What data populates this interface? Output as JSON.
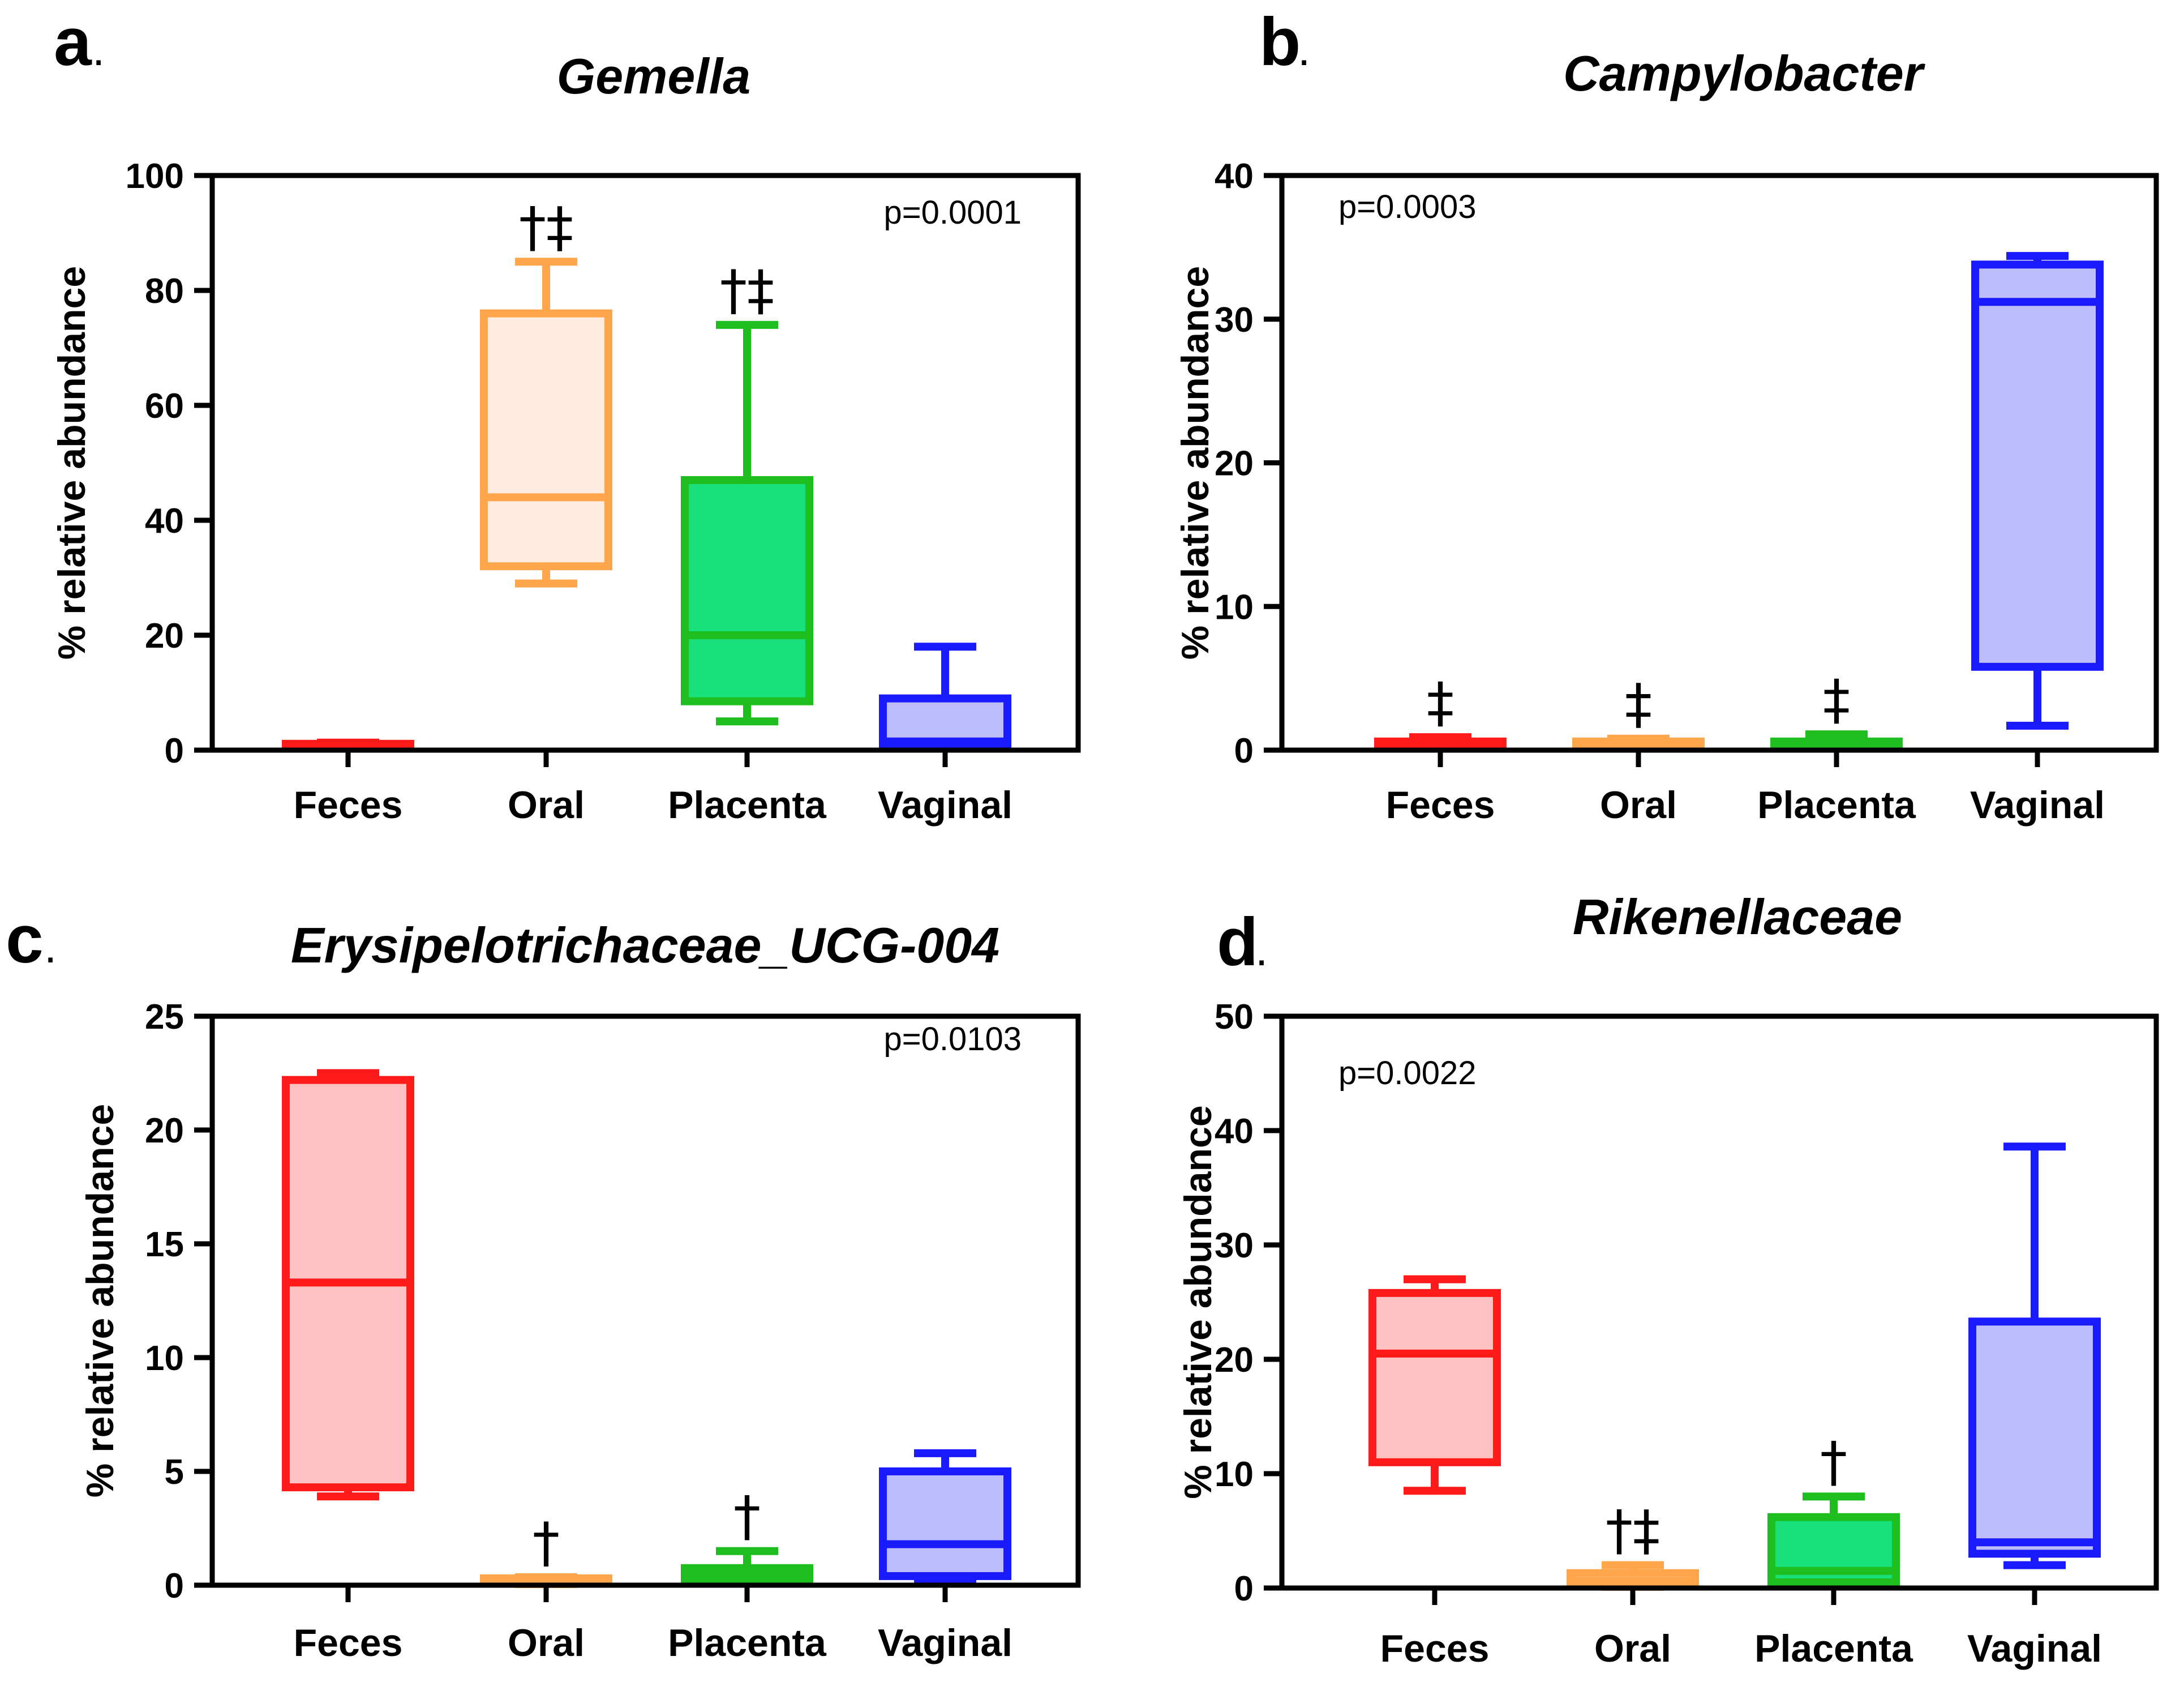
{
  "chart_data": [
    {
      "type": "box",
      "panel": "a",
      "title": "Gemella",
      "xlabel": "",
      "ylabel": "% relative abundance",
      "ylim": [
        0,
        100
      ],
      "yticks": [
        "0",
        "20",
        "40",
        "60",
        "80",
        "100"
      ],
      "categories": [
        "Feces",
        "Oral",
        "Placenta",
        "Vaginal"
      ],
      "pvalue": "p=0.0001",
      "boxes": [
        {
          "category": "Feces",
          "min": 0.3,
          "q1": 0.5,
          "median": 0.8,
          "q3": 1.1,
          "max": 1.3,
          "significance": ""
        },
        {
          "category": "Oral",
          "min": 29,
          "q1": 32,
          "median": 44,
          "q3": 76,
          "max": 85,
          "significance": "†‡"
        },
        {
          "category": "Placenta",
          "min": 5,
          "q1": 8.5,
          "median": 20,
          "q3": 47,
          "max": 74,
          "significance": "†‡"
        },
        {
          "category": "Vaginal",
          "min": 0.3,
          "q1": 1,
          "median": 1.5,
          "q3": 9,
          "max": 18,
          "significance": ""
        }
      ]
    },
    {
      "type": "box",
      "panel": "b",
      "title": "Campylobacter",
      "xlabel": "",
      "ylabel": "% relative abundance",
      "ylim": [
        0,
        40
      ],
      "yticks": [
        "0",
        "10",
        "20",
        "30",
        "40"
      ],
      "categories": [
        "Feces",
        "Oral",
        "Placenta",
        "Vaginal"
      ],
      "pvalue": "p=0.0003",
      "boxes": [
        {
          "category": "Feces",
          "min": 0.1,
          "q1": 0.2,
          "median": 0.4,
          "q3": 0.6,
          "max": 0.9,
          "significance": "‡"
        },
        {
          "category": "Oral",
          "min": 0.1,
          "q1": 0.2,
          "median": 0.4,
          "q3": 0.6,
          "max": 0.8,
          "significance": "‡"
        },
        {
          "category": "Placenta",
          "min": 0.1,
          "q1": 0.2,
          "median": 0.4,
          "q3": 0.6,
          "max": 1.1,
          "significance": "‡"
        },
        {
          "category": "Vaginal",
          "min": 1.7,
          "q1": 5.8,
          "median": 31.2,
          "q3": 33.8,
          "max": 34.4,
          "significance": ""
        }
      ]
    },
    {
      "type": "box",
      "panel": "c",
      "title": "Erysipelotrichaceae_UCG-004",
      "xlabel": "",
      "ylabel": "% relative abundance",
      "ylim": [
        0,
        25
      ],
      "yticks": [
        "0",
        "5",
        "10",
        "15",
        "20",
        "25"
      ],
      "categories": [
        "Feces",
        "Oral",
        "Placenta",
        "Vaginal"
      ],
      "pvalue": "p=0.0103",
      "boxes": [
        {
          "category": "Feces",
          "min": 3.9,
          "q1": 4.3,
          "median": 13.3,
          "q3": 22.2,
          "max": 22.5,
          "significance": ""
        },
        {
          "category": "Oral",
          "min": 0.05,
          "q1": 0.1,
          "median": 0.2,
          "q3": 0.3,
          "max": 0.35,
          "significance": "†"
        },
        {
          "category": "Placenta",
          "min": 0.1,
          "q1": 0.25,
          "median": 0.5,
          "q3": 0.75,
          "max": 1.5,
          "significance": "†"
        },
        {
          "category": "Vaginal",
          "min": 0.1,
          "q1": 0.4,
          "median": 1.8,
          "q3": 5.0,
          "max": 5.8,
          "significance": ""
        }
      ]
    },
    {
      "type": "box",
      "panel": "d",
      "title": "Rikenellaceae",
      "xlabel": "",
      "ylabel": "% relative abundance",
      "ylim": [
        0,
        50
      ],
      "yticks": [
        "0",
        "10",
        "20",
        "30",
        "40",
        "50"
      ],
      "categories": [
        "Feces",
        "Oral",
        "Placenta",
        "Vaginal"
      ],
      "pvalue": "p=0.0022",
      "boxes": [
        {
          "category": "Feces",
          "min": 8.5,
          "q1": 11,
          "median": 20.5,
          "q3": 25.8,
          "max": 27,
          "significance": ""
        },
        {
          "category": "Oral",
          "min": 0.1,
          "q1": 0.3,
          "median": 0.6,
          "q3": 1.3,
          "max": 2,
          "significance": "†‡"
        },
        {
          "category": "Placenta",
          "min": 0.2,
          "q1": 0.5,
          "median": 1.5,
          "q3": 6.2,
          "max": 8,
          "significance": "†"
        },
        {
          "category": "Vaginal",
          "min": 2,
          "q1": 3,
          "median": 4,
          "q3": 23.3,
          "max": 38.6,
          "significance": ""
        }
      ]
    }
  ],
  "colors": {
    "Feces": {
      "stroke": "#ff1a1a",
      "fill": "#ffc2c2"
    },
    "Oral": {
      "stroke": "#ffa64d",
      "fill": "#ffecde"
    },
    "Placenta": {
      "stroke": "#1ebe1e",
      "fill": "#18e07a"
    },
    "Vaginal": {
      "stroke": "#1a1aff",
      "fill": "#bdbdfb"
    }
  }
}
